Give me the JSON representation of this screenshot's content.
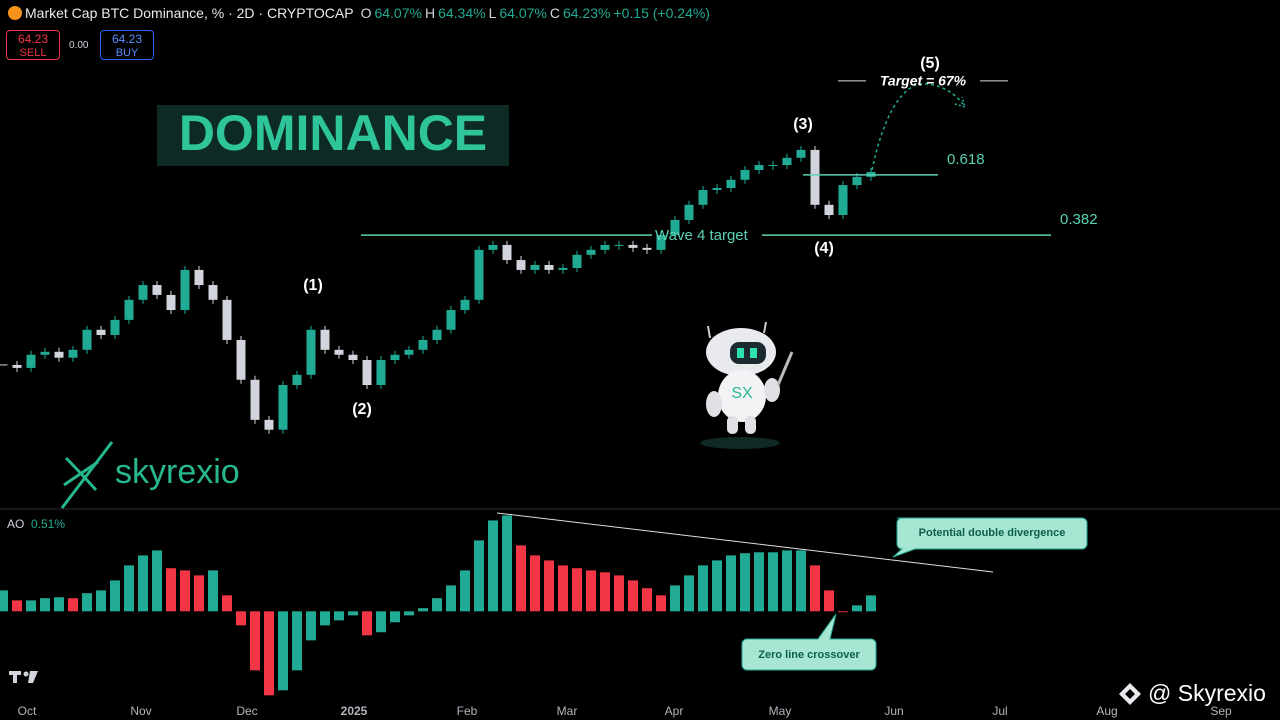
{
  "chart_data": {
    "type": "candlestick",
    "title": "Market Cap BTC Dominance, % · 2D · CRYPTOCAP",
    "ohlc": {
      "o_label": "O",
      "o": "64.07%",
      "h_label": "H",
      "h": "64.34%",
      "l_label": "L",
      "l": "64.07%",
      "c_label": "C",
      "c": "64.23%",
      "change": "+0.15 (+0.24%)"
    },
    "trade": {
      "sell_price": "64.23",
      "sell": "SELL",
      "spread": "0.00",
      "buy_price": "64.23",
      "buy": "BUY"
    },
    "banner": "DOMINANCE",
    "values": [
      58.36,
      58.27,
      58.67,
      58.76,
      58.58,
      58.82,
      59.43,
      59.27,
      59.73,
      60.34,
      60.79,
      60.49,
      60.03,
      61.25,
      60.79,
      60.34,
      59.12,
      57.91,
      56.69,
      56.39,
      57.75,
      58.06,
      59.43,
      58.82,
      58.67,
      58.51,
      57.75,
      58.51,
      58.67,
      58.82,
      59.12,
      59.43,
      60.03,
      60.34,
      61.86,
      62.01,
      61.55,
      61.25,
      61.4,
      61.25,
      61.31,
      61.71,
      61.86,
      62.01,
      62.01,
      61.92,
      61.86,
      62.31,
      62.77,
      63.23,
      63.68,
      63.74,
      63.99,
      64.29,
      64.44,
      64.44,
      64.66,
      64.9,
      63.23,
      62.92,
      63.83,
      64.08,
      64.23
    ],
    "up_color": "#22ab94",
    "down_color": "#d1d4dc",
    "ylim": [
      55.5,
      67.5
    ],
    "levels": [
      {
        "label": "0.618",
        "value": 64.14
      },
      {
        "label": "0.382",
        "value": 62.31
      }
    ],
    "wave4_label": "Wave 4 target",
    "target": {
      "label": "Target = 67%",
      "value": 67
    },
    "waves": [
      "(1)",
      "(2)",
      "(3)",
      "(4)",
      "(5)"
    ],
    "x_axis_labels": [
      "Oct",
      "Nov",
      "Dec",
      "2025",
      "Feb",
      "Mar",
      "Apr",
      "May",
      "Jun",
      "Jul",
      "Aug",
      "Sep"
    ],
    "ao": {
      "name": "AO",
      "value_label": "0.51%",
      "values": [
        0.67,
        0.35,
        0.35,
        0.42,
        0.45,
        0.42,
        0.58,
        0.67,
        0.99,
        1.47,
        1.79,
        1.95,
        1.38,
        1.31,
        1.15,
        1.31,
        0.51,
        -0.45,
        -1.89,
        -2.69,
        -2.53,
        -1.89,
        -0.93,
        -0.45,
        -0.29,
        -0.13,
        -0.77,
        -0.67,
        -0.35,
        -0.13,
        0.1,
        0.42,
        0.83,
        1.31,
        2.27,
        2.91,
        3.07,
        2.11,
        1.79,
        1.63,
        1.47,
        1.38,
        1.31,
        1.25,
        1.15,
        0.99,
        0.74,
        0.51,
        0.83,
        1.15,
        1.47,
        1.63,
        1.79,
        1.86,
        1.89,
        1.89,
        1.95,
        1.95,
        1.47,
        0.67,
        -0.03,
        0.19,
        0.51
      ],
      "up_color": "#22ab94",
      "down_color": "#f23645",
      "ylim": [
        -3,
        3.5
      ]
    },
    "annotations": {
      "divergence": "Potential double divergence",
      "zero_cross": "Zero line crossover"
    },
    "brand": "skyrexio",
    "watermark": "@ Skyrexio"
  }
}
